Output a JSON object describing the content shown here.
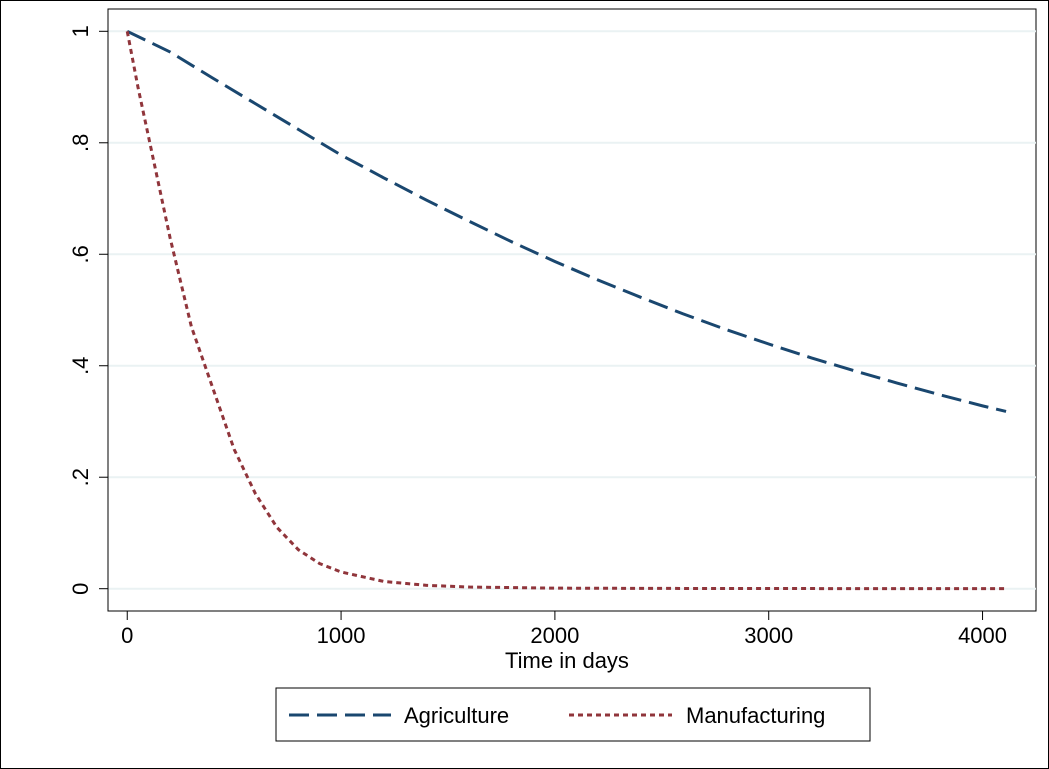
{
  "chart_data": {
    "type": "line",
    "title": "",
    "xlabel": "Time in days",
    "ylabel": "",
    "xlim": [
      -90,
      4250
    ],
    "ylim": [
      -0.04,
      1.04
    ],
    "xticks": [
      0,
      1000,
      2000,
      3000,
      4000
    ],
    "xtick_labels": [
      "0",
      "1000",
      "2000",
      "3000",
      "4000"
    ],
    "yticks": [
      0,
      0.2,
      0.4,
      0.6,
      0.8,
      1
    ],
    "ytick_labels": [
      "0",
      ".2",
      ".4",
      ".6",
      ".8",
      "1"
    ],
    "grid": true,
    "legend_position": "bottom",
    "series": [
      {
        "name": "Agriculture",
        "color": "#1a476f",
        "dash": "long-dash",
        "x": [
          0,
          200,
          400,
          600,
          800,
          1000,
          1200,
          1400,
          1600,
          1800,
          2000,
          2200,
          2400,
          2600,
          2800,
          3000,
          3200,
          3400,
          3600,
          3800,
          4000,
          4110
        ],
        "y": [
          1.0,
          0.963,
          0.916,
          0.87,
          0.824,
          0.778,
          0.737,
          0.697,
          0.659,
          0.622,
          0.587,
          0.554,
          0.523,
          0.493,
          0.465,
          0.439,
          0.414,
          0.391,
          0.369,
          0.348,
          0.328,
          0.318
        ]
      },
      {
        "name": "Manufacturing",
        "color": "#90353b",
        "dash": "short-dash",
        "x": [
          0,
          50,
          100,
          150,
          200,
          250,
          300,
          400,
          500,
          600,
          700,
          800,
          900,
          1000,
          1200,
          1400,
          1600,
          1800,
          2000,
          2500,
          3000,
          3500,
          4000,
          4110
        ],
        "y": [
          1.0,
          0.9,
          0.81,
          0.72,
          0.63,
          0.55,
          0.47,
          0.36,
          0.25,
          0.17,
          0.11,
          0.07,
          0.045,
          0.03,
          0.013,
          0.006,
          0.003,
          0.002,
          0.001,
          0.0005,
          0.0003,
          0.0002,
          0.0001,
          0.0001
        ]
      }
    ]
  }
}
